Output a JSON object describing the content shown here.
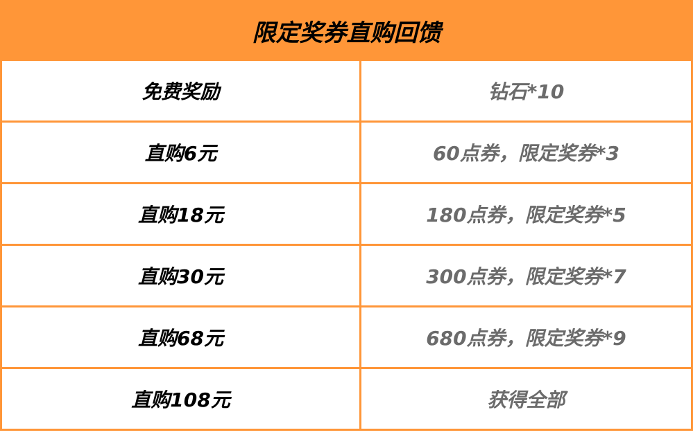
{
  "title": "限定奖券直购回馈",
  "colors": {
    "accent": "#FF9638",
    "value_text": "#6b6b6b"
  },
  "rows": [
    {
      "tier": "免费奖励",
      "reward": "钻石*10"
    },
    {
      "tier": "直购6元",
      "reward": "60点券，限定奖券*3"
    },
    {
      "tier": "直购18元",
      "reward": "180点券，限定奖券*5"
    },
    {
      "tier": "直购30元",
      "reward": "300点券，限定奖券*7"
    },
    {
      "tier": "直购68元",
      "reward": "680点券，限定奖券*9"
    },
    {
      "tier": "直购108元",
      "reward": "获得全部"
    }
  ]
}
